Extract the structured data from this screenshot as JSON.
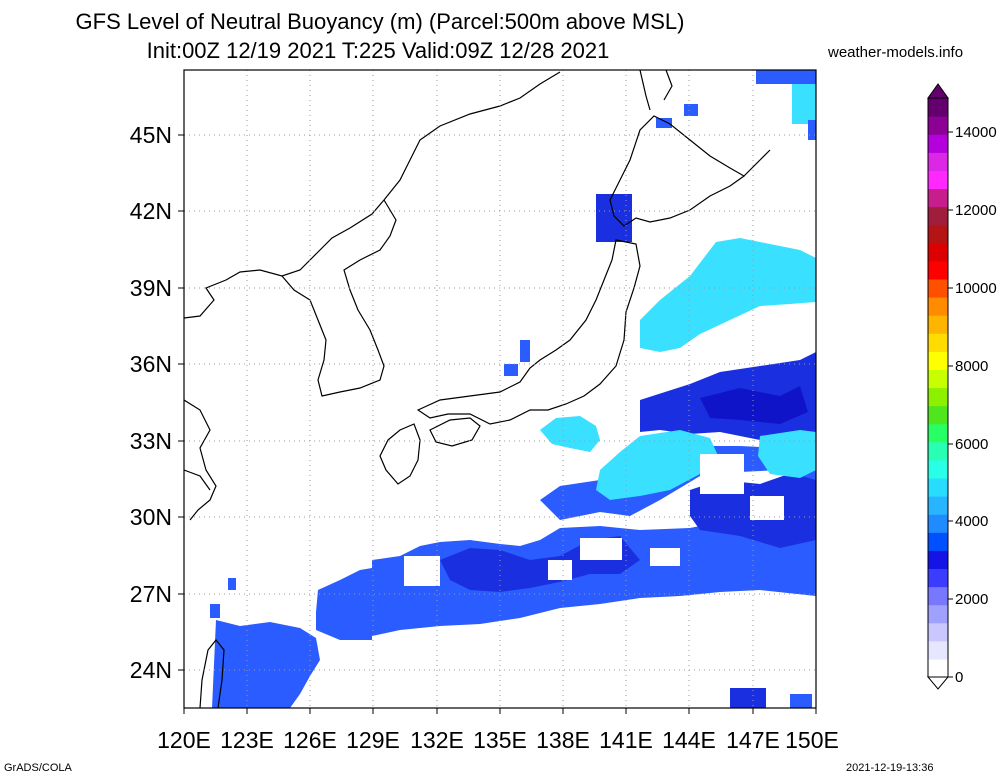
{
  "title_line1": "GFS Level of Neutral Buoyancy (m) (Parcel:500m above MSL)",
  "title_line2": "Init:00Z 12/19 2021 T:225 Valid:09Z 12/28 2021",
  "site": "weather-models.info",
  "footer_left": "GrADS/COLA",
  "footer_right": "2021-12-19-13:36",
  "lon_labels": [
    "120E",
    "123E",
    "126E",
    "129E",
    "132E",
    "135E",
    "138E",
    "141E",
    "144E",
    "147E",
    "150E"
  ],
  "lat_labels": [
    "24N",
    "27N",
    "30N",
    "33N",
    "36N",
    "39N",
    "42N",
    "45N"
  ],
  "colorbar": {
    "labels": [
      "0",
      "2000",
      "4000",
      "6000",
      "8000",
      "10000",
      "12000",
      "14000"
    ],
    "colors": [
      "#ffffff",
      "#e6e6ff",
      "#c8c8ff",
      "#a0a0ff",
      "#7878ff",
      "#3c3cff",
      "#1414e6",
      "#0050ff",
      "#1e8cff",
      "#28b4ff",
      "#28dcff",
      "#28ffe6",
      "#28ffb4",
      "#28ff64",
      "#50e61e",
      "#8cf000",
      "#c8ff00",
      "#ffff00",
      "#ffdc00",
      "#ffb400",
      "#ff8c00",
      "#ff5000",
      "#ff0000",
      "#dc0000",
      "#b41414",
      "#a01e3c",
      "#c81e8c",
      "#ff28ff",
      "#dc28e6",
      "#b400dc",
      "#8c0096",
      "#64006e"
    ]
  }
}
